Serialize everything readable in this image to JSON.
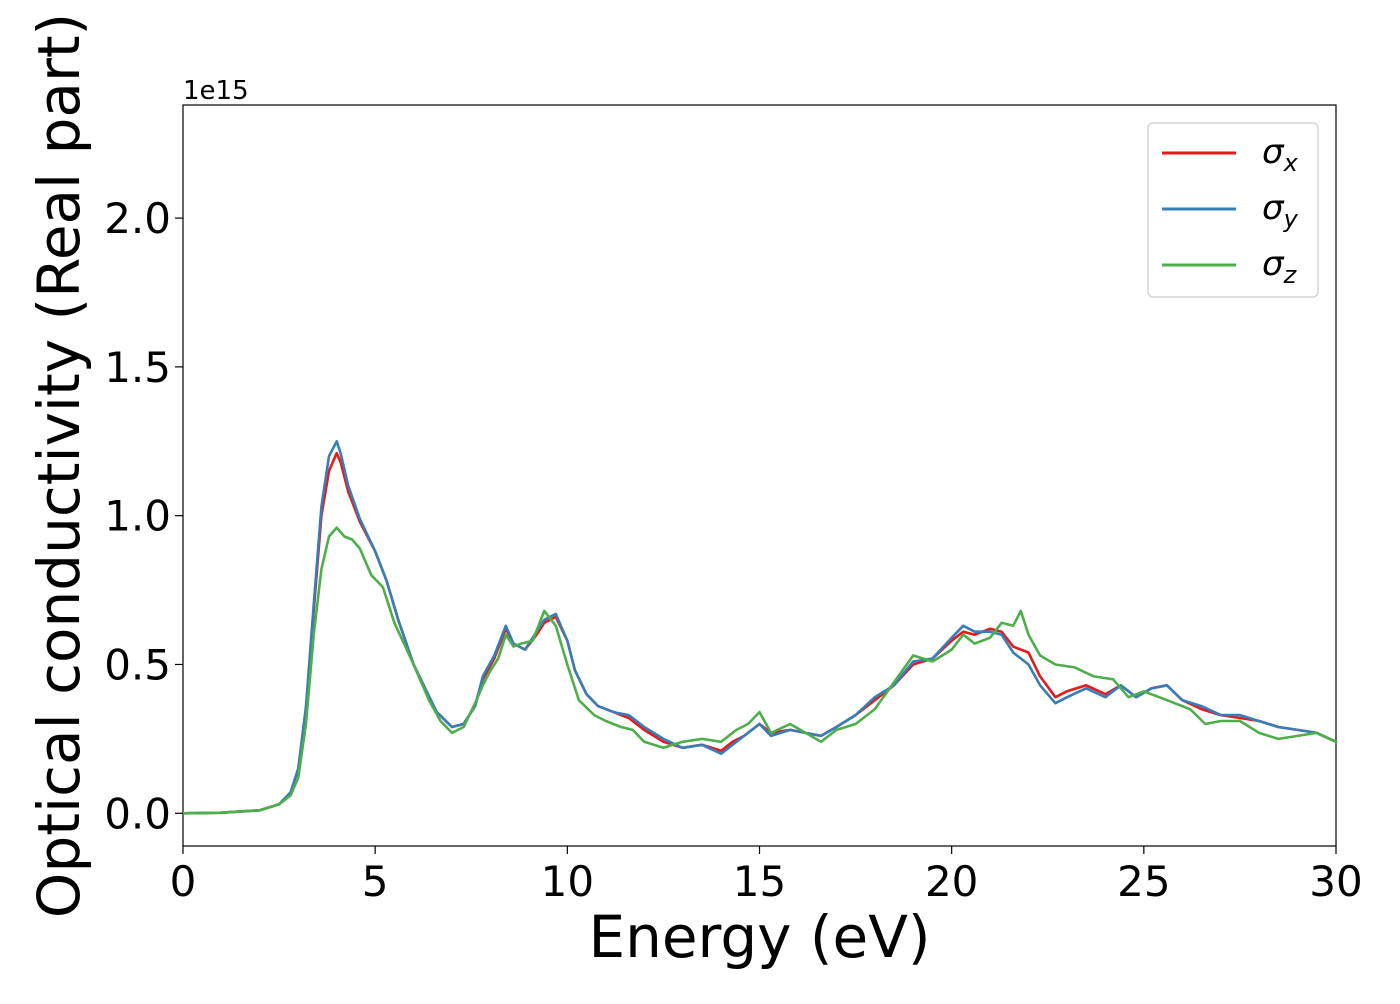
{
  "chart_data": {
    "type": "line",
    "title": "",
    "xlabel": "Energy (eV)",
    "ylabel": "Optical conductivity (Real part)",
    "y_offset_text": "1e15",
    "xlim": [
      0,
      30
    ],
    "ylim": [
      -0.11,
      2.38
    ],
    "x_ticks": [
      0,
      5,
      10,
      15,
      20,
      25,
      30
    ],
    "x_tick_labels": [
      "0",
      "5",
      "10",
      "15",
      "20",
      "25",
      "30"
    ],
    "y_ticks": [
      0.0,
      0.5,
      1.0,
      1.5,
      2.0
    ],
    "y_tick_labels": [
      "0.0",
      "0.5",
      "1.0",
      "1.5",
      "2.0"
    ],
    "grid": false,
    "legend_position": "top-right",
    "series": [
      {
        "name": "σx",
        "symbol": "σ",
        "subscript": "x",
        "color": "#e41a1c",
        "points": [
          [
            0,
            0.0
          ],
          [
            1,
            0.002
          ],
          [
            2,
            0.01
          ],
          [
            2.5,
            0.03
          ],
          [
            2.8,
            0.07
          ],
          [
            3.0,
            0.15
          ],
          [
            3.2,
            0.35
          ],
          [
            3.4,
            0.68
          ],
          [
            3.6,
            1.0
          ],
          [
            3.8,
            1.15
          ],
          [
            4.0,
            1.21
          ],
          [
            4.1,
            1.18
          ],
          [
            4.3,
            1.08
          ],
          [
            4.6,
            0.98
          ],
          [
            5.0,
            0.88
          ],
          [
            5.3,
            0.78
          ],
          [
            5.6,
            0.65
          ],
          [
            6.0,
            0.5
          ],
          [
            6.3,
            0.42
          ],
          [
            6.6,
            0.34
          ],
          [
            7.0,
            0.29
          ],
          [
            7.3,
            0.3
          ],
          [
            7.6,
            0.36
          ],
          [
            7.8,
            0.45
          ],
          [
            8.1,
            0.52
          ],
          [
            8.4,
            0.62
          ],
          [
            8.6,
            0.57
          ],
          [
            8.9,
            0.55
          ],
          [
            9.2,
            0.6
          ],
          [
            9.4,
            0.64
          ],
          [
            9.7,
            0.66
          ],
          [
            10.0,
            0.58
          ],
          [
            10.2,
            0.48
          ],
          [
            10.5,
            0.4
          ],
          [
            10.8,
            0.36
          ],
          [
            11.2,
            0.34
          ],
          [
            11.6,
            0.32
          ],
          [
            12.0,
            0.28
          ],
          [
            12.5,
            0.24
          ],
          [
            13.0,
            0.22
          ],
          [
            13.5,
            0.23
          ],
          [
            14.0,
            0.21
          ],
          [
            14.3,
            0.24
          ],
          [
            14.6,
            0.26
          ],
          [
            15.0,
            0.3
          ],
          [
            15.3,
            0.27
          ],
          [
            15.8,
            0.28
          ],
          [
            16.2,
            0.27
          ],
          [
            16.6,
            0.26
          ],
          [
            17.0,
            0.29
          ],
          [
            17.5,
            0.33
          ],
          [
            18.0,
            0.38
          ],
          [
            18.5,
            0.43
          ],
          [
            19.0,
            0.5
          ],
          [
            19.5,
            0.52
          ],
          [
            20.0,
            0.58
          ],
          [
            20.3,
            0.61
          ],
          [
            20.6,
            0.6
          ],
          [
            21.0,
            0.62
          ],
          [
            21.3,
            0.61
          ],
          [
            21.6,
            0.56
          ],
          [
            22.0,
            0.54
          ],
          [
            22.3,
            0.46
          ],
          [
            22.7,
            0.39
          ],
          [
            23.0,
            0.41
          ],
          [
            23.5,
            0.43
          ],
          [
            24.0,
            0.4
          ],
          [
            24.4,
            0.43
          ],
          [
            24.8,
            0.39
          ],
          [
            25.2,
            0.42
          ],
          [
            25.6,
            0.43
          ],
          [
            26.0,
            0.38
          ],
          [
            26.5,
            0.35
          ],
          [
            27.0,
            0.33
          ],
          [
            27.5,
            0.32
          ],
          [
            28.0,
            0.31
          ],
          [
            28.5,
            0.29
          ],
          [
            29.0,
            0.28
          ],
          [
            29.5,
            0.27
          ],
          [
            30.0,
            0.24
          ]
        ]
      },
      {
        "name": "σy",
        "symbol": "σ",
        "subscript": "y",
        "color": "#377eb8",
        "points": [
          [
            0,
            0.0
          ],
          [
            1,
            0.002
          ],
          [
            2,
            0.01
          ],
          [
            2.5,
            0.03
          ],
          [
            2.8,
            0.07
          ],
          [
            3.0,
            0.15
          ],
          [
            3.2,
            0.36
          ],
          [
            3.4,
            0.7
          ],
          [
            3.6,
            1.03
          ],
          [
            3.8,
            1.2
          ],
          [
            4.0,
            1.25
          ],
          [
            4.1,
            1.21
          ],
          [
            4.3,
            1.1
          ],
          [
            4.6,
            0.99
          ],
          [
            5.0,
            0.88
          ],
          [
            5.3,
            0.78
          ],
          [
            5.6,
            0.65
          ],
          [
            6.0,
            0.5
          ],
          [
            6.3,
            0.42
          ],
          [
            6.6,
            0.34
          ],
          [
            7.0,
            0.29
          ],
          [
            7.3,
            0.3
          ],
          [
            7.6,
            0.36
          ],
          [
            7.8,
            0.46
          ],
          [
            8.1,
            0.53
          ],
          [
            8.4,
            0.63
          ],
          [
            8.6,
            0.57
          ],
          [
            8.9,
            0.55
          ],
          [
            9.2,
            0.61
          ],
          [
            9.4,
            0.65
          ],
          [
            9.7,
            0.67
          ],
          [
            10.0,
            0.58
          ],
          [
            10.2,
            0.48
          ],
          [
            10.5,
            0.4
          ],
          [
            10.8,
            0.36
          ],
          [
            11.2,
            0.34
          ],
          [
            11.6,
            0.33
          ],
          [
            12.0,
            0.29
          ],
          [
            12.5,
            0.25
          ],
          [
            13.0,
            0.22
          ],
          [
            13.5,
            0.23
          ],
          [
            14.0,
            0.2
          ],
          [
            14.3,
            0.23
          ],
          [
            14.6,
            0.26
          ],
          [
            15.0,
            0.3
          ],
          [
            15.3,
            0.26
          ],
          [
            15.8,
            0.28
          ],
          [
            16.2,
            0.27
          ],
          [
            16.6,
            0.26
          ],
          [
            17.0,
            0.29
          ],
          [
            17.5,
            0.33
          ],
          [
            18.0,
            0.39
          ],
          [
            18.5,
            0.43
          ],
          [
            19.0,
            0.51
          ],
          [
            19.5,
            0.52
          ],
          [
            20.0,
            0.59
          ],
          [
            20.3,
            0.63
          ],
          [
            20.6,
            0.61
          ],
          [
            21.0,
            0.61
          ],
          [
            21.3,
            0.6
          ],
          [
            21.6,
            0.54
          ],
          [
            22.0,
            0.5
          ],
          [
            22.3,
            0.43
          ],
          [
            22.7,
            0.37
          ],
          [
            23.0,
            0.39
          ],
          [
            23.5,
            0.42
          ],
          [
            24.0,
            0.39
          ],
          [
            24.4,
            0.43
          ],
          [
            24.8,
            0.39
          ],
          [
            25.2,
            0.42
          ],
          [
            25.6,
            0.43
          ],
          [
            26.0,
            0.38
          ],
          [
            26.5,
            0.36
          ],
          [
            27.0,
            0.33
          ],
          [
            27.5,
            0.33
          ],
          [
            28.0,
            0.31
          ],
          [
            28.5,
            0.29
          ],
          [
            29.0,
            0.28
          ],
          [
            29.5,
            0.27
          ],
          [
            30.0,
            0.24
          ]
        ]
      },
      {
        "name": "σz",
        "symbol": "σ",
        "subscript": "z",
        "color": "#4daf4a",
        "points": [
          [
            0,
            0.0
          ],
          [
            1,
            0.002
          ],
          [
            2,
            0.01
          ],
          [
            2.5,
            0.03
          ],
          [
            2.8,
            0.06
          ],
          [
            3.0,
            0.12
          ],
          [
            3.2,
            0.3
          ],
          [
            3.4,
            0.6
          ],
          [
            3.6,
            0.82
          ],
          [
            3.8,
            0.93
          ],
          [
            4.0,
            0.96
          ],
          [
            4.2,
            0.93
          ],
          [
            4.4,
            0.92
          ],
          [
            4.6,
            0.89
          ],
          [
            4.9,
            0.8
          ],
          [
            5.2,
            0.76
          ],
          [
            5.5,
            0.64
          ],
          [
            6.0,
            0.5
          ],
          [
            6.4,
            0.38
          ],
          [
            6.7,
            0.31
          ],
          [
            7.0,
            0.27
          ],
          [
            7.3,
            0.29
          ],
          [
            7.6,
            0.37
          ],
          [
            7.8,
            0.43
          ],
          [
            8.0,
            0.48
          ],
          [
            8.2,
            0.52
          ],
          [
            8.4,
            0.6
          ],
          [
            8.6,
            0.56
          ],
          [
            8.8,
            0.57
          ],
          [
            9.1,
            0.58
          ],
          [
            9.4,
            0.68
          ],
          [
            9.7,
            0.63
          ],
          [
            10.0,
            0.5
          ],
          [
            10.3,
            0.38
          ],
          [
            10.7,
            0.33
          ],
          [
            11.0,
            0.31
          ],
          [
            11.4,
            0.29
          ],
          [
            11.7,
            0.28
          ],
          [
            12.0,
            0.24
          ],
          [
            12.5,
            0.22
          ],
          [
            13.0,
            0.24
          ],
          [
            13.5,
            0.25
          ],
          [
            14.0,
            0.24
          ],
          [
            14.4,
            0.28
          ],
          [
            14.7,
            0.3
          ],
          [
            15.0,
            0.34
          ],
          [
            15.3,
            0.27
          ],
          [
            15.8,
            0.3
          ],
          [
            16.2,
            0.27
          ],
          [
            16.6,
            0.24
          ],
          [
            17.0,
            0.28
          ],
          [
            17.5,
            0.3
          ],
          [
            18.0,
            0.35
          ],
          [
            18.5,
            0.44
          ],
          [
            19.0,
            0.53
          ],
          [
            19.5,
            0.51
          ],
          [
            20.0,
            0.55
          ],
          [
            20.3,
            0.6
          ],
          [
            20.6,
            0.57
          ],
          [
            21.0,
            0.59
          ],
          [
            21.3,
            0.64
          ],
          [
            21.6,
            0.63
          ],
          [
            21.8,
            0.68
          ],
          [
            22.0,
            0.6
          ],
          [
            22.3,
            0.53
          ],
          [
            22.7,
            0.5
          ],
          [
            23.2,
            0.49
          ],
          [
            23.7,
            0.46
          ],
          [
            24.2,
            0.45
          ],
          [
            24.6,
            0.39
          ],
          [
            25.0,
            0.41
          ],
          [
            25.4,
            0.39
          ],
          [
            25.8,
            0.37
          ],
          [
            26.2,
            0.35
          ],
          [
            26.6,
            0.3
          ],
          [
            27.0,
            0.31
          ],
          [
            27.5,
            0.31
          ],
          [
            28.0,
            0.27
          ],
          [
            28.5,
            0.25
          ],
          [
            29.0,
            0.26
          ],
          [
            29.5,
            0.27
          ],
          [
            30.0,
            0.24
          ]
        ]
      }
    ]
  }
}
